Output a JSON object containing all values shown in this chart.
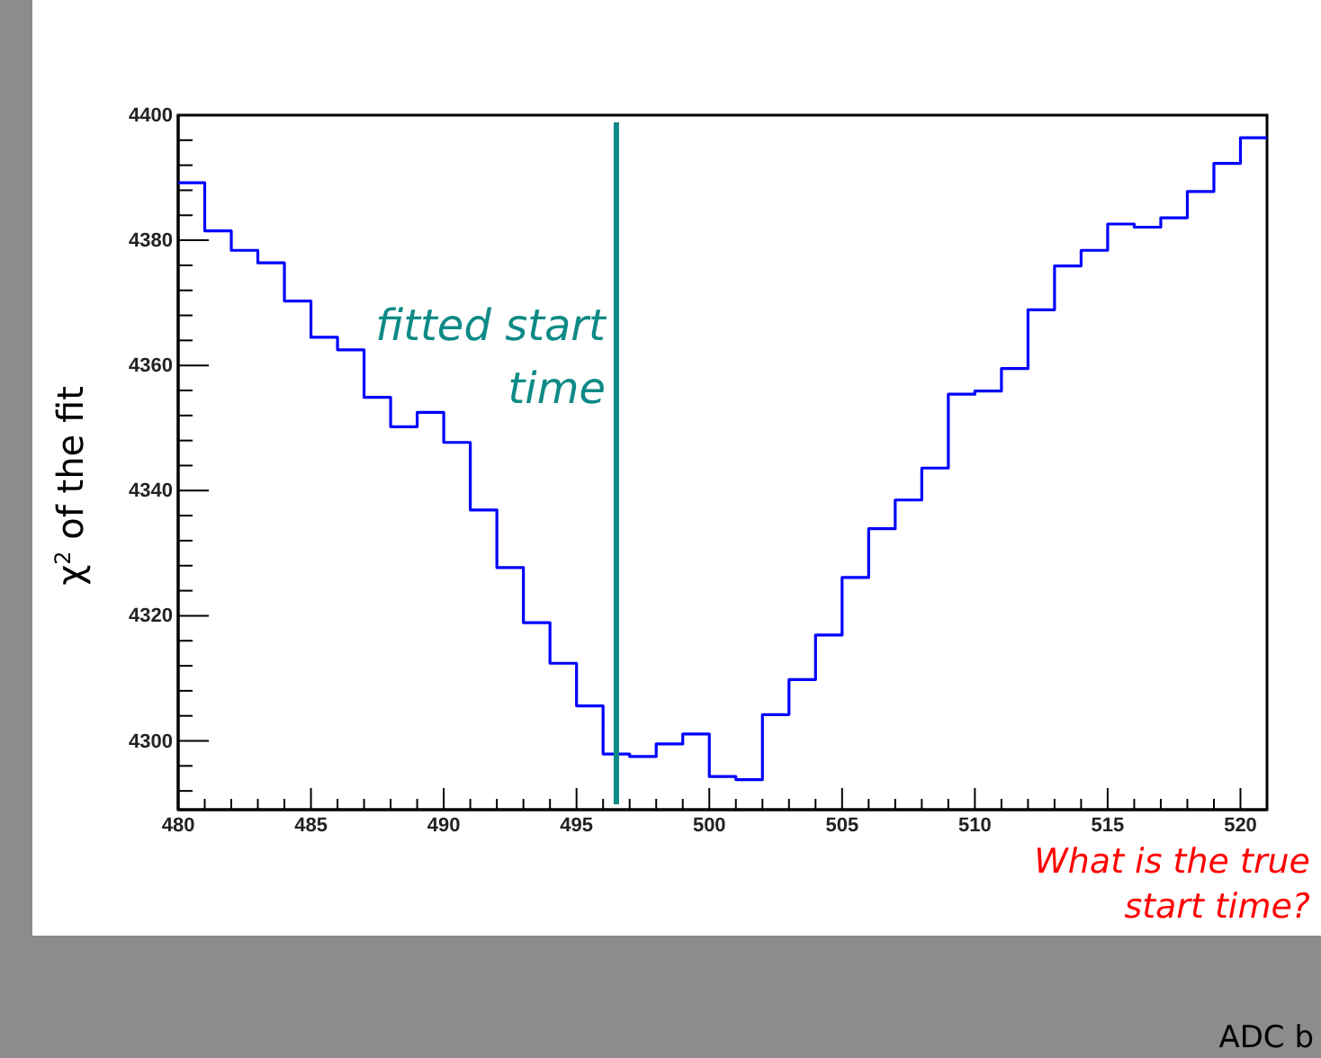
{
  "chart_data": {
    "type": "histogram",
    "ylabel": "χ$^{2}$ of the fit",
    "bins": [
      480,
      481,
      482,
      483,
      484,
      485,
      486,
      487,
      488,
      489,
      490,
      491,
      492,
      493,
      494,
      495,
      496,
      497,
      498,
      499,
      500,
      501,
      502,
      503,
      504,
      505,
      506,
      507,
      508,
      509,
      510,
      511,
      512,
      513,
      514,
      515,
      516,
      517,
      518,
      519,
      520,
      521
    ],
    "values": [
      4389.2,
      4381.5,
      4378.4,
      4376.4,
      4370.3,
      4364.5,
      4362.5,
      4354.9,
      4350.2,
      4352.5,
      4347.7,
      4336.9,
      4327.7,
      4318.9,
      4312.4,
      4305.6,
      4297.9,
      4297.5,
      4299.5,
      4301.1,
      4294.3,
      4293.8,
      4304.2,
      4309.8,
      4316.9,
      4326.1,
      4333.9,
      4338.5,
      4343.6,
      4355.4,
      4355.9,
      4359.5,
      4368.9,
      4375.9,
      4378.4,
      4382.6,
      4382.1,
      4383.6,
      4387.8,
      4392.3,
      4396.4
    ],
    "color": "#0000ff",
    "xlim": [
      480,
      521
    ],
    "ylim": [
      4289,
      4400
    ],
    "xticks": [
      480,
      {
        "value": 481,
        "label": null
      },
      {
        "value": 482,
        "label": null
      },
      {
        "value": 483,
        "label": null
      },
      {
        "value": 484,
        "label": null
      },
      485,
      {
        "value": 486,
        "label": null
      },
      {
        "value": 487,
        "label": null
      },
      {
        "value": 488,
        "label": null
      },
      {
        "value": 489,
        "label": null
      },
      490,
      {
        "value": 491,
        "label": null
      },
      {
        "value": 492,
        "label": null
      },
      {
        "value": 493,
        "label": null
      },
      {
        "value": 494,
        "label": null
      },
      495,
      {
        "value": 496,
        "label": null
      },
      {
        "value": 497,
        "label": null
      },
      {
        "value": 498,
        "label": null
      },
      {
        "value": 499,
        "label": null
      },
      500,
      {
        "value": 501,
        "label": null
      },
      {
        "value": 502,
        "label": null
      },
      {
        "value": 503,
        "label": null
      },
      {
        "value": 504,
        "label": null
      },
      505,
      {
        "value": 506,
        "label": null
      },
      {
        "value": 507,
        "label": null
      },
      {
        "value": 508,
        "label": null
      },
      {
        "value": 509,
        "label": null
      },
      510,
      {
        "value": 511,
        "label": null
      },
      {
        "value": 512,
        "label": null
      },
      {
        "value": 513,
        "label": null
      },
      {
        "value": 514,
        "label": null
      },
      515,
      {
        "value": 516,
        "label": null
      },
      {
        "value": 517,
        "label": null
      },
      {
        "value": 518,
        "label": null
      },
      {
        "value": 519,
        "label": null
      },
      520
    ],
    "yticks": [
      {
        "value": 4292,
        "label": null
      },
      {
        "value": 4296,
        "label": null
      },
      4300,
      {
        "value": 4304,
        "label": null
      },
      {
        "value": 4308,
        "label": null
      },
      {
        "value": 4312,
        "label": null
      },
      {
        "value": 4316,
        "label": null
      },
      4320,
      {
        "value": 4324,
        "label": null
      },
      {
        "value": 4328,
        "label": null
      },
      {
        "value": 4332,
        "label": null
      },
      {
        "value": 4336,
        "label": null
      },
      4340,
      {
        "value": 4344,
        "label": null
      },
      {
        "value": 4348,
        "label": null
      },
      {
        "value": 4352,
        "label": null
      },
      {
        "value": 4356,
        "label": null
      },
      4360,
      {
        "value": 4364,
        "label": null
      },
      {
        "value": 4368,
        "label": null
      },
      {
        "value": 4372,
        "label": null
      },
      {
        "value": 4376,
        "label": null
      },
      4380,
      {
        "value": 4384,
        "label": null
      },
      {
        "value": 4388,
        "label": null
      },
      {
        "value": 4392,
        "label": null
      },
      {
        "value": 4396,
        "label": null
      },
      4400
    ],
    "ref_lines": [
      {
        "axis": "x",
        "value": 496.5,
        "label": "fitted start time",
        "color": "#0e8a86"
      }
    ],
    "annotations": [
      "What is the true start time?",
      "ADC b"
    ]
  }
}
